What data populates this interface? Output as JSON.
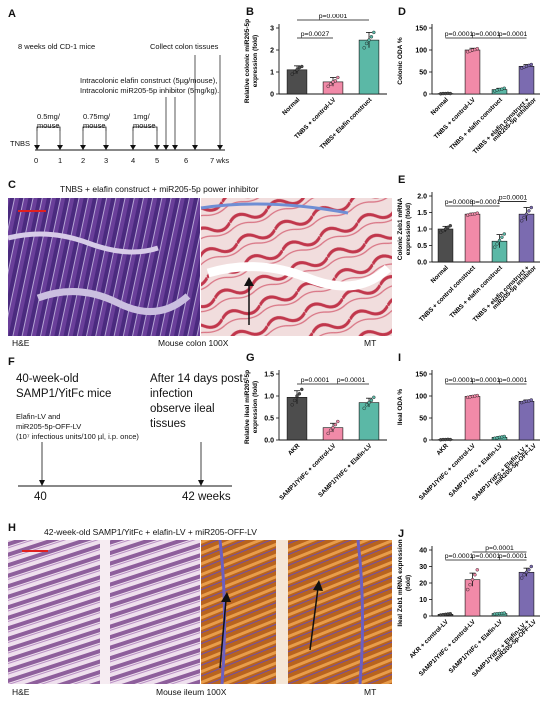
{
  "panels": {
    "A": {
      "label": "A",
      "mice": "8 weeks old CD-1 mice",
      "collect": "Collect colon tissues",
      "treatment_line1": "Intracolonic elafin construct (5µg/mouse),",
      "treatment_line2": "Intracolonic miR205-5p inhibitor (5mg/kg).",
      "doses": [
        {
          "line1": "0.5mg/",
          "line2": "mouse"
        },
        {
          "line1": "0.75mg/",
          "line2": "mouse"
        },
        {
          "line1": "1mg/",
          "line2": "mouse"
        }
      ],
      "tnbs": "TNBS",
      "ticks": [
        "0",
        "1",
        "2",
        "3",
        "4",
        "5",
        "6",
        "7 wks"
      ]
    },
    "B": {
      "label": "B"
    },
    "C": {
      "label": "C",
      "title": "TNBS + elafin construct + miR205-5p power inhibitor",
      "stain_left": "H&E",
      "stain_right": "MT",
      "caption": "Mouse colon 100X"
    },
    "D": {
      "label": "D"
    },
    "E": {
      "label": "E"
    },
    "F": {
      "label": "F",
      "line1": "40-week-old",
      "line2": "SAMP1/YitFc mice",
      "inj1": "Elafin-LV and",
      "inj2": "miR205-5p-OFF-LV",
      "inj3": "(10⁷ infectious units/100 µl, i.p. once)",
      "right1": "After 14 days post-",
      "right2": "infection",
      "right3": "observe ileal",
      "right4": "tissues",
      "start": "40",
      "end": "42 weeks"
    },
    "G": {
      "label": "G"
    },
    "H": {
      "label": "H",
      "title": "42-week-old SAMP1/YitFc + elafin-LV + miR205-OFF-LV",
      "stain_left": "H&E",
      "stain_right": "MT",
      "caption": "Mouse ileum 100X"
    },
    "I": {
      "label": "I"
    },
    "J": {
      "label": "J"
    }
  },
  "chart_data": [
    {
      "id": "B",
      "type": "bar",
      "ylabel": "Relative colonic miR205-5p expression (fold)",
      "ylim": [
        0,
        3
      ],
      "yticks": [
        0,
        1,
        2,
        3
      ],
      "categories": [
        "Normal",
        "TNBS + control-LV",
        "TNBS+ Elafin construct"
      ],
      "values": [
        1.1,
        0.55,
        2.45
      ],
      "errors": [
        0.18,
        0.2,
        0.35
      ],
      "colors": [
        "#4d4d4d",
        "#f18aa8",
        "#5bb8a6"
      ],
      "points": [
        [
          0.9,
          1.0,
          1.1,
          1.2,
          1.25
        ],
        [
          0.35,
          0.45,
          0.55,
          0.6,
          0.75
        ],
        [
          2.1,
          2.3,
          2.45,
          2.6,
          2.8
        ]
      ],
      "comparisons": [
        {
          "from": 0,
          "to": 1,
          "text": "p=0.0027"
        },
        {
          "from": 0,
          "to": 2,
          "text": "p=0.0001"
        }
      ]
    },
    {
      "id": "D",
      "type": "bar",
      "ylabel": "Colonic ODA %",
      "ylim": [
        0,
        150
      ],
      "yticks": [
        0,
        50,
        100,
        150
      ],
      "categories": [
        "Normal",
        "TNBS + control-LV",
        "TNBS + elafin construct",
        "TNBS + elafin construct + miR205-5p inhibitor"
      ],
      "values": [
        1,
        100,
        10,
        63
      ],
      "errors": [
        0.5,
        4,
        3,
        4
      ],
      "colors": [
        "#4d4d4d",
        "#f18aa8",
        "#5bb8a6",
        "#7b6bb0"
      ],
      "points": [
        [
          0.5,
          1,
          1,
          1.5,
          1
        ],
        [
          96,
          98,
          100,
          101,
          103
        ],
        [
          7,
          9,
          10,
          11,
          13
        ],
        [
          59,
          61,
          63,
          65,
          67
        ]
      ],
      "comparisons": [
        {
          "from": 0,
          "to": 1,
          "text": "p=0.0001"
        },
        {
          "from": 1,
          "to": 2,
          "text": "p=0.0001"
        },
        {
          "from": 2,
          "to": 3,
          "text": "p=0.0001"
        }
      ]
    },
    {
      "id": "E",
      "type": "bar",
      "ylabel": "Colonic Zeb1 mRNA expression (fold)",
      "ylim": [
        0,
        2.0
      ],
      "yticks": [
        0.0,
        0.5,
        1.0,
        1.5,
        2.0
      ],
      "categories": [
        "Normal",
        "TNBS + control construct",
        "TNBS + elafin construct",
        "TNBS + elafin construct + miR205-5p inhibitor"
      ],
      "values": [
        1.0,
        1.45,
        0.63,
        1.45
      ],
      "errors": [
        0.08,
        0.03,
        0.2,
        0.2
      ],
      "colors": [
        "#4d4d4d",
        "#f18aa8",
        "#5bb8a6",
        "#7b6bb0"
      ],
      "points": [
        [
          0.9,
          0.95,
          1.0,
          1.05,
          1.1
        ],
        [
          1.42,
          1.44,
          1.45,
          1.46,
          1.48
        ],
        [
          0.45,
          0.55,
          0.65,
          0.75,
          0.85
        ],
        [
          1.25,
          1.35,
          1.45,
          1.55,
          1.65
        ]
      ],
      "comparisons": [
        {
          "from": 0,
          "to": 1,
          "text": "p=0.0008"
        },
        {
          "from": 1,
          "to": 2,
          "text": "p=0.0001"
        },
        {
          "from": 2,
          "to": 3,
          "text": "p=0.0001"
        }
      ]
    },
    {
      "id": "G",
      "type": "bar",
      "ylabel": "Relative ileal miR205-5p expression (fold)",
      "ylim": [
        0,
        1.5
      ],
      "yticks": [
        0.0,
        0.5,
        1.0,
        1.5
      ],
      "categories": [
        "AKR",
        "SAMP1/YitFc + control-LV",
        "SAMP1/YitFc + Elafin-LV"
      ],
      "values": [
        0.97,
        0.28,
        0.85
      ],
      "errors": [
        0.15,
        0.1,
        0.1
      ],
      "colors": [
        "#4d4d4d",
        "#f18aa8",
        "#5bb8a6"
      ],
      "points": [
        [
          0.8,
          0.9,
          1.0,
          1.05,
          1.15
        ],
        [
          0.15,
          0.22,
          0.28,
          0.35,
          0.42
        ],
        [
          0.72,
          0.8,
          0.85,
          0.9,
          0.97
        ]
      ],
      "comparisons": [
        {
          "from": 0,
          "to": 1,
          "text": "p=0.0001"
        },
        {
          "from": 1,
          "to": 2,
          "text": "p=0.0001"
        }
      ]
    },
    {
      "id": "I",
      "type": "bar",
      "ylabel": "Ileal ODA %",
      "ylim": [
        0,
        150
      ],
      "yticks": [
        0,
        50,
        100,
        150
      ],
      "categories": [
        "AKR",
        "SAMP1/YitFc + control-LV",
        "SAMP1/YitFc + Elafin-LV",
        "SAMP1/YitFc + Elafin-LV + miR205-5p-OFF-LV"
      ],
      "values": [
        1,
        99,
        6,
        88
      ],
      "errors": [
        0.5,
        2,
        2,
        3
      ],
      "colors": [
        "#4d4d4d",
        "#f18aa8",
        "#5bb8a6",
        "#7b6bb0"
      ],
      "points": [
        [
          0.5,
          1,
          1,
          1.5,
          1
        ],
        [
          97,
          98,
          99,
          100,
          101
        ],
        [
          4,
          5,
          6,
          7,
          8
        ],
        [
          85,
          87,
          88,
          89,
          91
        ]
      ],
      "comparisons": [
        {
          "from": 0,
          "to": 1,
          "text": "p=0.0001"
        },
        {
          "from": 1,
          "to": 2,
          "text": "p=0.0001"
        },
        {
          "from": 2,
          "to": 3,
          "text": "p=0.0001"
        }
      ]
    },
    {
      "id": "J",
      "type": "bar",
      "ylabel": "Ileal Zeb1 mRNA expression (fold)",
      "ylim": [
        0,
        40
      ],
      "yticks": [
        0,
        10,
        20,
        30,
        40
      ],
      "categories": [
        "AKR + control-LV",
        "SAMP1/YitFc + control-LV",
        "SAMP1/YitFc + Elafin-LV",
        "SAMP1/YitFc + Elafin-LV + miR205-5p-OFF-LV"
      ],
      "values": [
        1,
        22,
        1.5,
        26.5
      ],
      "errors": [
        0.3,
        4,
        0.3,
        2.5
      ],
      "colors": [
        "#4d4d4d",
        "#f18aa8",
        "#5bb8a6",
        "#7b6bb0"
      ],
      "points": [
        [
          0.6,
          0.8,
          1,
          1.2,
          1.4
        ],
        [
          16,
          19,
          22,
          25,
          28
        ],
        [
          1.2,
          1.4,
          1.5,
          1.6,
          1.8
        ],
        [
          23,
          25,
          26.5,
          28,
          30
        ]
      ],
      "comparisons": [
        {
          "from": 0,
          "to": 1,
          "text": "p=0.0001"
        },
        {
          "from": 1,
          "to": 2,
          "text": "p=0.0001"
        },
        {
          "from": 2,
          "to": 3,
          "text": "p=0.0001"
        },
        {
          "from": 1,
          "to": 3,
          "text": "p=0.0001"
        }
      ]
    }
  ]
}
